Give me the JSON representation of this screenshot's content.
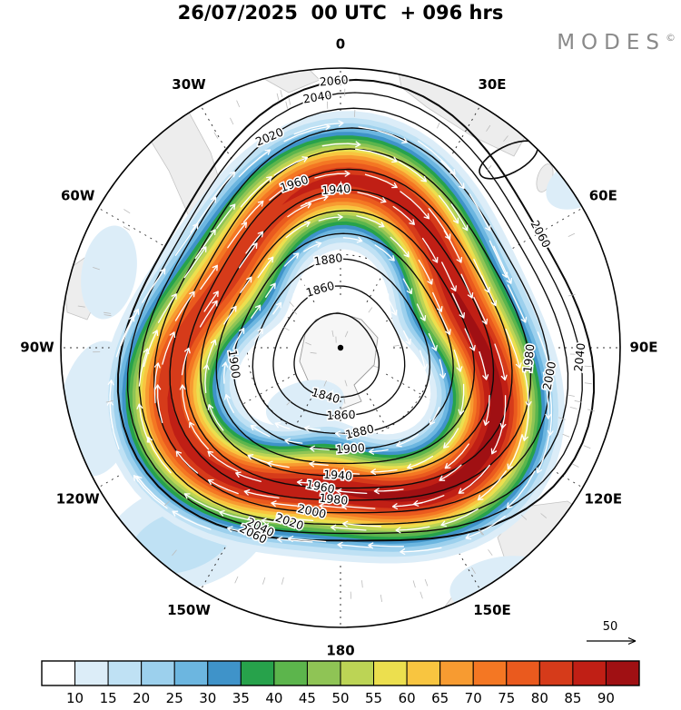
{
  "title": "26/07/2025  00 UTC  + 096 hrs",
  "brand": {
    "text": "MODES",
    "sup": "©"
  },
  "wind_reference": {
    "label": "50"
  },
  "map": {
    "lon_labels": [
      "0",
      "30E",
      "60E",
      "90E",
      "120E",
      "150E",
      "180",
      "150W",
      "120W",
      "90W",
      "60W",
      "30W"
    ]
  },
  "chart_data": {
    "type": "contour-map",
    "projection": "south-polar-stereographic",
    "title": "26/07/2025 00 UTC + 096 hrs",
    "base_date": "26/07/2025",
    "base_time": "00 UTC",
    "lead_hours": "+ 096 hrs",
    "contours": {
      "field": "geopotential-height",
      "levels": [
        1840,
        1860,
        1880,
        1900,
        1920,
        1940,
        1960,
        1980,
        2000,
        2020,
        2040,
        2060
      ],
      "interval": 20,
      "labeled_values": [
        1840,
        1860,
        1880,
        1900,
        1940,
        1960,
        1980,
        2000,
        2020,
        2040,
        2060
      ],
      "center_low_value": 1840,
      "outer_high_value": 2060
    },
    "shading": {
      "field": "wind-speed",
      "levels": [
        10,
        15,
        20,
        25,
        30,
        35,
        40,
        45,
        50,
        55,
        60,
        65,
        70,
        75,
        80,
        85,
        90
      ],
      "band_colors": [
        "#ffffff",
        "#dcedf8",
        "#bfe1f4",
        "#9cd0ed",
        "#6cb6e0",
        "#3f93c9",
        "#27a24b",
        "#5cb54c",
        "#8fc455",
        "#bcd455",
        "#ecdf4e",
        "#f8c540",
        "#f79b31",
        "#f47723",
        "#ea5a1e",
        "#d63b1a",
        "#c01f15",
        "#a01013"
      ]
    },
    "wind_reference_value": 50,
    "grid": {
      "lon_step_deg": 30,
      "lat_circles": 2,
      "style": "dashed"
    },
    "legend_position": "bottom",
    "colorbar_ticks": [
      10,
      15,
      20,
      25,
      30,
      35,
      40,
      45,
      50,
      55,
      60,
      65,
      70,
      75,
      80,
      85,
      90
    ]
  }
}
